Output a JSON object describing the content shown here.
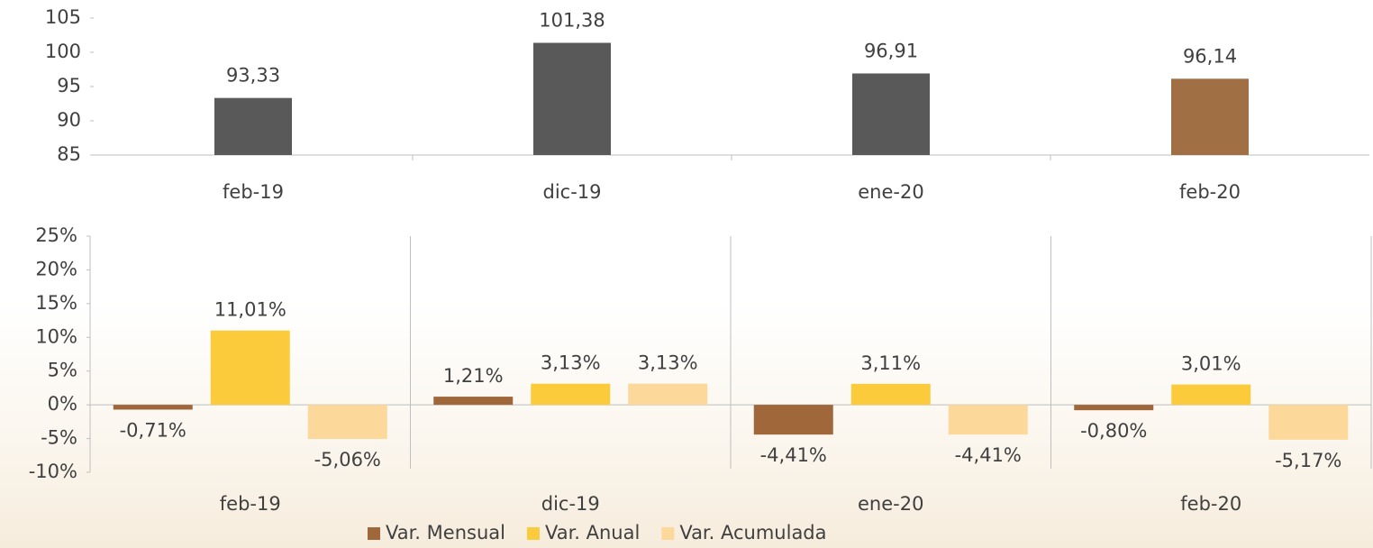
{
  "chart_data": [
    {
      "type": "bar",
      "categories": [
        "feb-19",
        "dic-19",
        "ene-20",
        "feb-20"
      ],
      "values": [
        93.33,
        101.38,
        96.91,
        96.14
      ],
      "value_labels": [
        "93,33",
        "101,38",
        "96,91",
        "96,14"
      ],
      "colors": [
        "#595959",
        "#595959",
        "#595959",
        "#a07044"
      ],
      "ylim": [
        85,
        105
      ],
      "yticks": [
        85,
        90,
        95,
        100,
        105
      ]
    },
    {
      "type": "grouped-bar",
      "categories": [
        "feb-19",
        "dic-19",
        "ene-20",
        "feb-20"
      ],
      "series": [
        {
          "name": "Var. Mensual",
          "color": "#a0683a",
          "values": [
            -0.71,
            1.21,
            -4.41,
            -0.8
          ],
          "value_labels": [
            "-0,71%",
            "1,21%",
            "-4,41%",
            "-0,80%"
          ]
        },
        {
          "name": "Var. Anual",
          "color": "#fccb3c",
          "values": [
            11.01,
            3.13,
            3.11,
            3.01
          ],
          "value_labels": [
            "11,01%",
            "3,13%",
            "3,11%",
            "3,01%"
          ]
        },
        {
          "name": "Var. Acumulada",
          "color": "#fcd89a",
          "values": [
            -5.06,
            3.13,
            -4.41,
            -5.17
          ],
          "value_labels": [
            "-5,06%",
            "3,13%",
            "-4,41%",
            "-5,17%"
          ]
        }
      ],
      "ylim": [
        -10,
        25
      ],
      "yticks": [
        {
          "value": -10,
          "label": "-10%"
        },
        {
          "value": -5,
          "label": "-5%"
        },
        {
          "value": 0,
          "label": "0%"
        },
        {
          "value": 5,
          "label": "5%"
        },
        {
          "value": 10,
          "label": "10%"
        },
        {
          "value": 15,
          "label": "15%"
        },
        {
          "value": 20,
          "label": "20%"
        },
        {
          "value": 25,
          "label": "25%"
        }
      ],
      "legend": "bottom"
    }
  ]
}
